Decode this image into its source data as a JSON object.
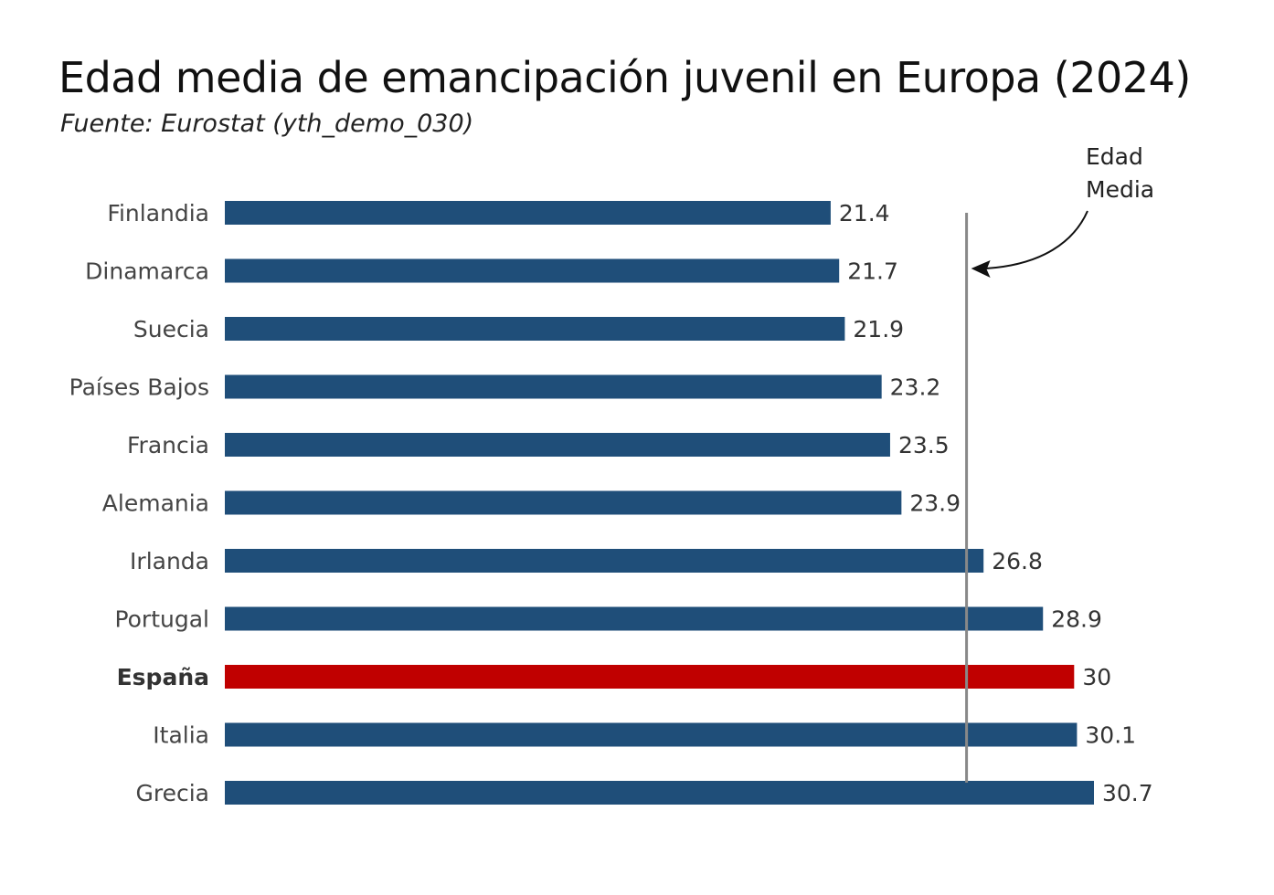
{
  "chart_data": {
    "type": "bar",
    "orientation": "horizontal",
    "title": "Edad media de emancipación juvenil en Europa (2024)",
    "subtitle": "Fuente: Eurostat (yth_demo_030)",
    "categories": [
      "Finlandia",
      "Dinamarca",
      "Suecia",
      "Países Bajos",
      "Francia",
      "Alemania",
      "Irlanda",
      "Portugal",
      "España",
      "Italia",
      "Grecia"
    ],
    "values": [
      21.4,
      21.7,
      21.9,
      23.2,
      23.5,
      23.9,
      26.8,
      28.9,
      30,
      30.1,
      30.7
    ],
    "value_labels": [
      "21.4",
      "21.7",
      "21.9",
      "23.2",
      "23.5",
      "23.9",
      "26.8",
      "28.9",
      "30",
      "30.1",
      "30.7"
    ],
    "highlight": "España",
    "xlim": [
      0,
      30.7
    ],
    "reference_line": {
      "value": 26.2,
      "label_lines": [
        "Edad",
        "Media"
      ]
    },
    "colors": {
      "bar": "#1f4e79",
      "highlight": "#c00000",
      "reference_line": "#888888"
    },
    "grid": false,
    "xlabel": "",
    "ylabel": ""
  }
}
